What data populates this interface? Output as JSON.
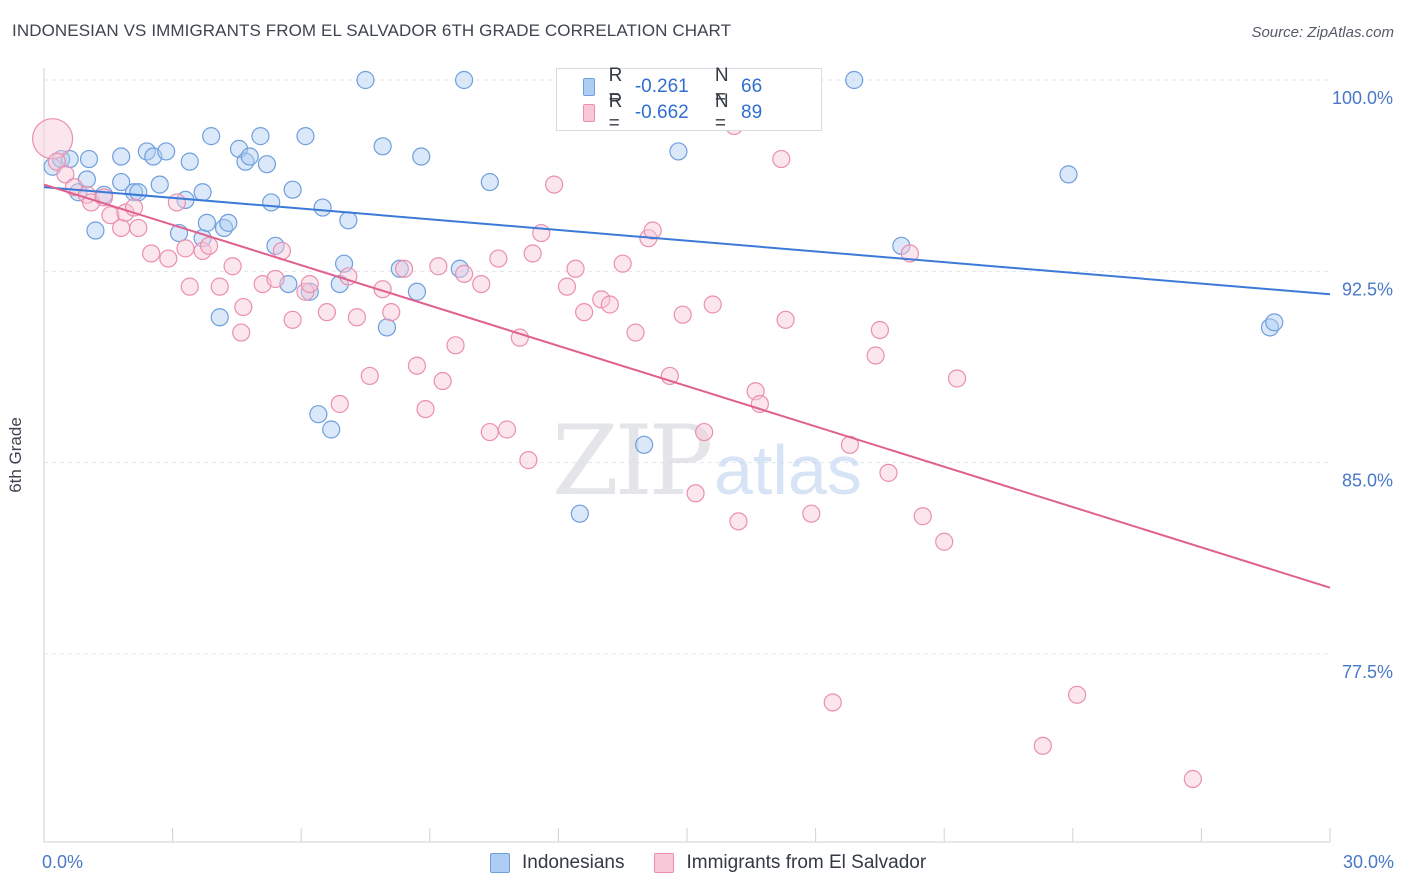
{
  "title": "INDONESIAN VS IMMIGRANTS FROM EL SALVADOR 6TH GRADE CORRELATION CHART",
  "source": "Source: ZipAtlas.com",
  "watermark": {
    "zip": "ZIP",
    "atlas": "atlas"
  },
  "legend": {
    "r_label": "R =",
    "n_label": "N =",
    "series": [
      {
        "r": "-0.261",
        "n": "66"
      },
      {
        "r": "-0.662",
        "n": "89"
      }
    ]
  },
  "bottom_legend": [
    "Indonesians",
    "Immigrants from El Salvador"
  ],
  "colors": {
    "blue": "#3b7ad6",
    "pink": "#e0608e",
    "blue_fill": "#aecdf2",
    "pink_fill": "#f8c8d8"
  },
  "chart_data": {
    "type": "scatter",
    "ylabel": "6th Grade",
    "xlim": [
      0,
      30
    ],
    "ylim": [
      70,
      101
    ],
    "x_tick_labels": [
      "0.0%",
      "30.0%"
    ],
    "y_ticks": [
      {
        "value": 100,
        "label": "100.0%"
      },
      {
        "value": 92.5,
        "label": "92.5%"
      },
      {
        "value": 85,
        "label": "85.0%"
      },
      {
        "value": 77.5,
        "label": "77.5%"
      }
    ],
    "grid": true,
    "legend_position": "top-center",
    "series": [
      {
        "name": "Indonesians",
        "color": "blue",
        "trend": [
          [
            0,
            95.8
          ],
          [
            30,
            91.6
          ]
        ],
        "points": [
          [
            0.2,
            96.6
          ],
          [
            0.4,
            96.9
          ],
          [
            0.6,
            96.9
          ],
          [
            0.8,
            95.6
          ],
          [
            1.0,
            96.1
          ],
          [
            1.05,
            96.9
          ],
          [
            1.2,
            94.1
          ],
          [
            1.4,
            95.5
          ],
          [
            1.8,
            97.0
          ],
          [
            1.8,
            96.0
          ],
          [
            2.1,
            95.6
          ],
          [
            2.2,
            95.6
          ],
          [
            2.4,
            97.2
          ],
          [
            2.55,
            97.0
          ],
          [
            2.7,
            95.9
          ],
          [
            2.85,
            97.2
          ],
          [
            3.15,
            94.0
          ],
          [
            3.3,
            95.3
          ],
          [
            3.4,
            96.8
          ],
          [
            3.7,
            93.8
          ],
          [
            3.7,
            95.6
          ],
          [
            3.8,
            94.4
          ],
          [
            3.9,
            97.8
          ],
          [
            4.1,
            90.7
          ],
          [
            4.2,
            94.2
          ],
          [
            4.3,
            94.4
          ],
          [
            4.55,
            97.3
          ],
          [
            4.7,
            96.8
          ],
          [
            4.8,
            97.0
          ],
          [
            5.05,
            97.8
          ],
          [
            5.2,
            96.7
          ],
          [
            5.3,
            95.2
          ],
          [
            5.4,
            93.5
          ],
          [
            5.7,
            92.0
          ],
          [
            5.8,
            95.7
          ],
          [
            6.1,
            97.8
          ],
          [
            6.2,
            91.7
          ],
          [
            6.4,
            86.9
          ],
          [
            6.5,
            95.0
          ],
          [
            6.7,
            86.3
          ],
          [
            6.9,
            92.0
          ],
          [
            7.0,
            92.8
          ],
          [
            7.1,
            94.5
          ],
          [
            7.5,
            100.0
          ],
          [
            7.9,
            97.4
          ],
          [
            8.0,
            90.3
          ],
          [
            8.3,
            92.6
          ],
          [
            8.7,
            91.7
          ],
          [
            8.8,
            97.0
          ],
          [
            9.7,
            92.6
          ],
          [
            9.8,
            100.0
          ],
          [
            10.4,
            96.0
          ],
          [
            12.5,
            83.0
          ],
          [
            12.8,
            100.0
          ],
          [
            14.0,
            85.7
          ],
          [
            14.8,
            97.2
          ],
          [
            18.9,
            100.0
          ],
          [
            20.0,
            93.5
          ],
          [
            23.9,
            96.3
          ],
          [
            28.6,
            90.3
          ],
          [
            28.7,
            90.5
          ]
        ]
      },
      {
        "name": "Immigrants from El Salvador",
        "color": "pink",
        "trend": [
          [
            0,
            95.9
          ],
          [
            30,
            80.1
          ]
        ],
        "points": [
          [
            0.2,
            97.7
          ],
          [
            0.3,
            96.8
          ],
          [
            0.5,
            96.3
          ],
          [
            0.7,
            95.8
          ],
          [
            1.0,
            95.5
          ],
          [
            1.1,
            95.2
          ],
          [
            1.4,
            95.4
          ],
          [
            1.55,
            94.7
          ],
          [
            1.8,
            94.2
          ],
          [
            1.9,
            94.8
          ],
          [
            2.1,
            95.0
          ],
          [
            2.2,
            94.2
          ],
          [
            2.5,
            93.2
          ],
          [
            2.9,
            93.0
          ],
          [
            3.1,
            95.2
          ],
          [
            3.3,
            93.4
          ],
          [
            3.4,
            91.9
          ],
          [
            3.7,
            93.3
          ],
          [
            3.85,
            93.5
          ],
          [
            4.1,
            91.9
          ],
          [
            4.4,
            92.7
          ],
          [
            4.6,
            90.1
          ],
          [
            4.65,
            91.1
          ],
          [
            5.1,
            92.0
          ],
          [
            5.4,
            92.2
          ],
          [
            5.55,
            93.3
          ],
          [
            5.8,
            90.6
          ],
          [
            6.1,
            91.7
          ],
          [
            6.2,
            92.0
          ],
          [
            6.6,
            90.9
          ],
          [
            6.9,
            87.3
          ],
          [
            7.1,
            92.3
          ],
          [
            7.3,
            90.7
          ],
          [
            7.6,
            88.4
          ],
          [
            7.9,
            91.8
          ],
          [
            8.1,
            90.9
          ],
          [
            8.4,
            92.6
          ],
          [
            8.7,
            88.8
          ],
          [
            8.9,
            87.1
          ],
          [
            9.2,
            92.7
          ],
          [
            9.3,
            88.2
          ],
          [
            9.6,
            89.6
          ],
          [
            9.8,
            92.4
          ],
          [
            10.2,
            92.0
          ],
          [
            10.4,
            86.2
          ],
          [
            10.6,
            93.0
          ],
          [
            10.8,
            86.3
          ],
          [
            11.1,
            89.9
          ],
          [
            11.3,
            85.1
          ],
          [
            11.4,
            93.2
          ],
          [
            11.6,
            94.0
          ],
          [
            11.9,
            95.9
          ],
          [
            12.2,
            91.9
          ],
          [
            12.4,
            92.6
          ],
          [
            12.6,
            90.9
          ],
          [
            13.0,
            91.4
          ],
          [
            13.2,
            91.2
          ],
          [
            13.5,
            92.8
          ],
          [
            13.8,
            90.1
          ],
          [
            14.1,
            93.8
          ],
          [
            14.2,
            94.1
          ],
          [
            14.6,
            88.4
          ],
          [
            14.9,
            90.8
          ],
          [
            15.2,
            83.8
          ],
          [
            15.4,
            86.2
          ],
          [
            15.6,
            91.2
          ],
          [
            16.1,
            98.2
          ],
          [
            16.2,
            82.7
          ],
          [
            16.6,
            87.8
          ],
          [
            16.7,
            87.3
          ],
          [
            17.2,
            96.9
          ],
          [
            17.3,
            90.6
          ],
          [
            17.9,
            83.0
          ],
          [
            18.4,
            75.6
          ],
          [
            18.8,
            85.7
          ],
          [
            19.4,
            89.2
          ],
          [
            19.5,
            90.2
          ],
          [
            19.7,
            84.6
          ],
          [
            20.2,
            93.2
          ],
          [
            20.5,
            82.9
          ],
          [
            21.0,
            81.9
          ],
          [
            21.3,
            88.3
          ],
          [
            23.3,
            73.9
          ],
          [
            24.1,
            75.9
          ],
          [
            26.8,
            72.6
          ]
        ]
      }
    ]
  }
}
